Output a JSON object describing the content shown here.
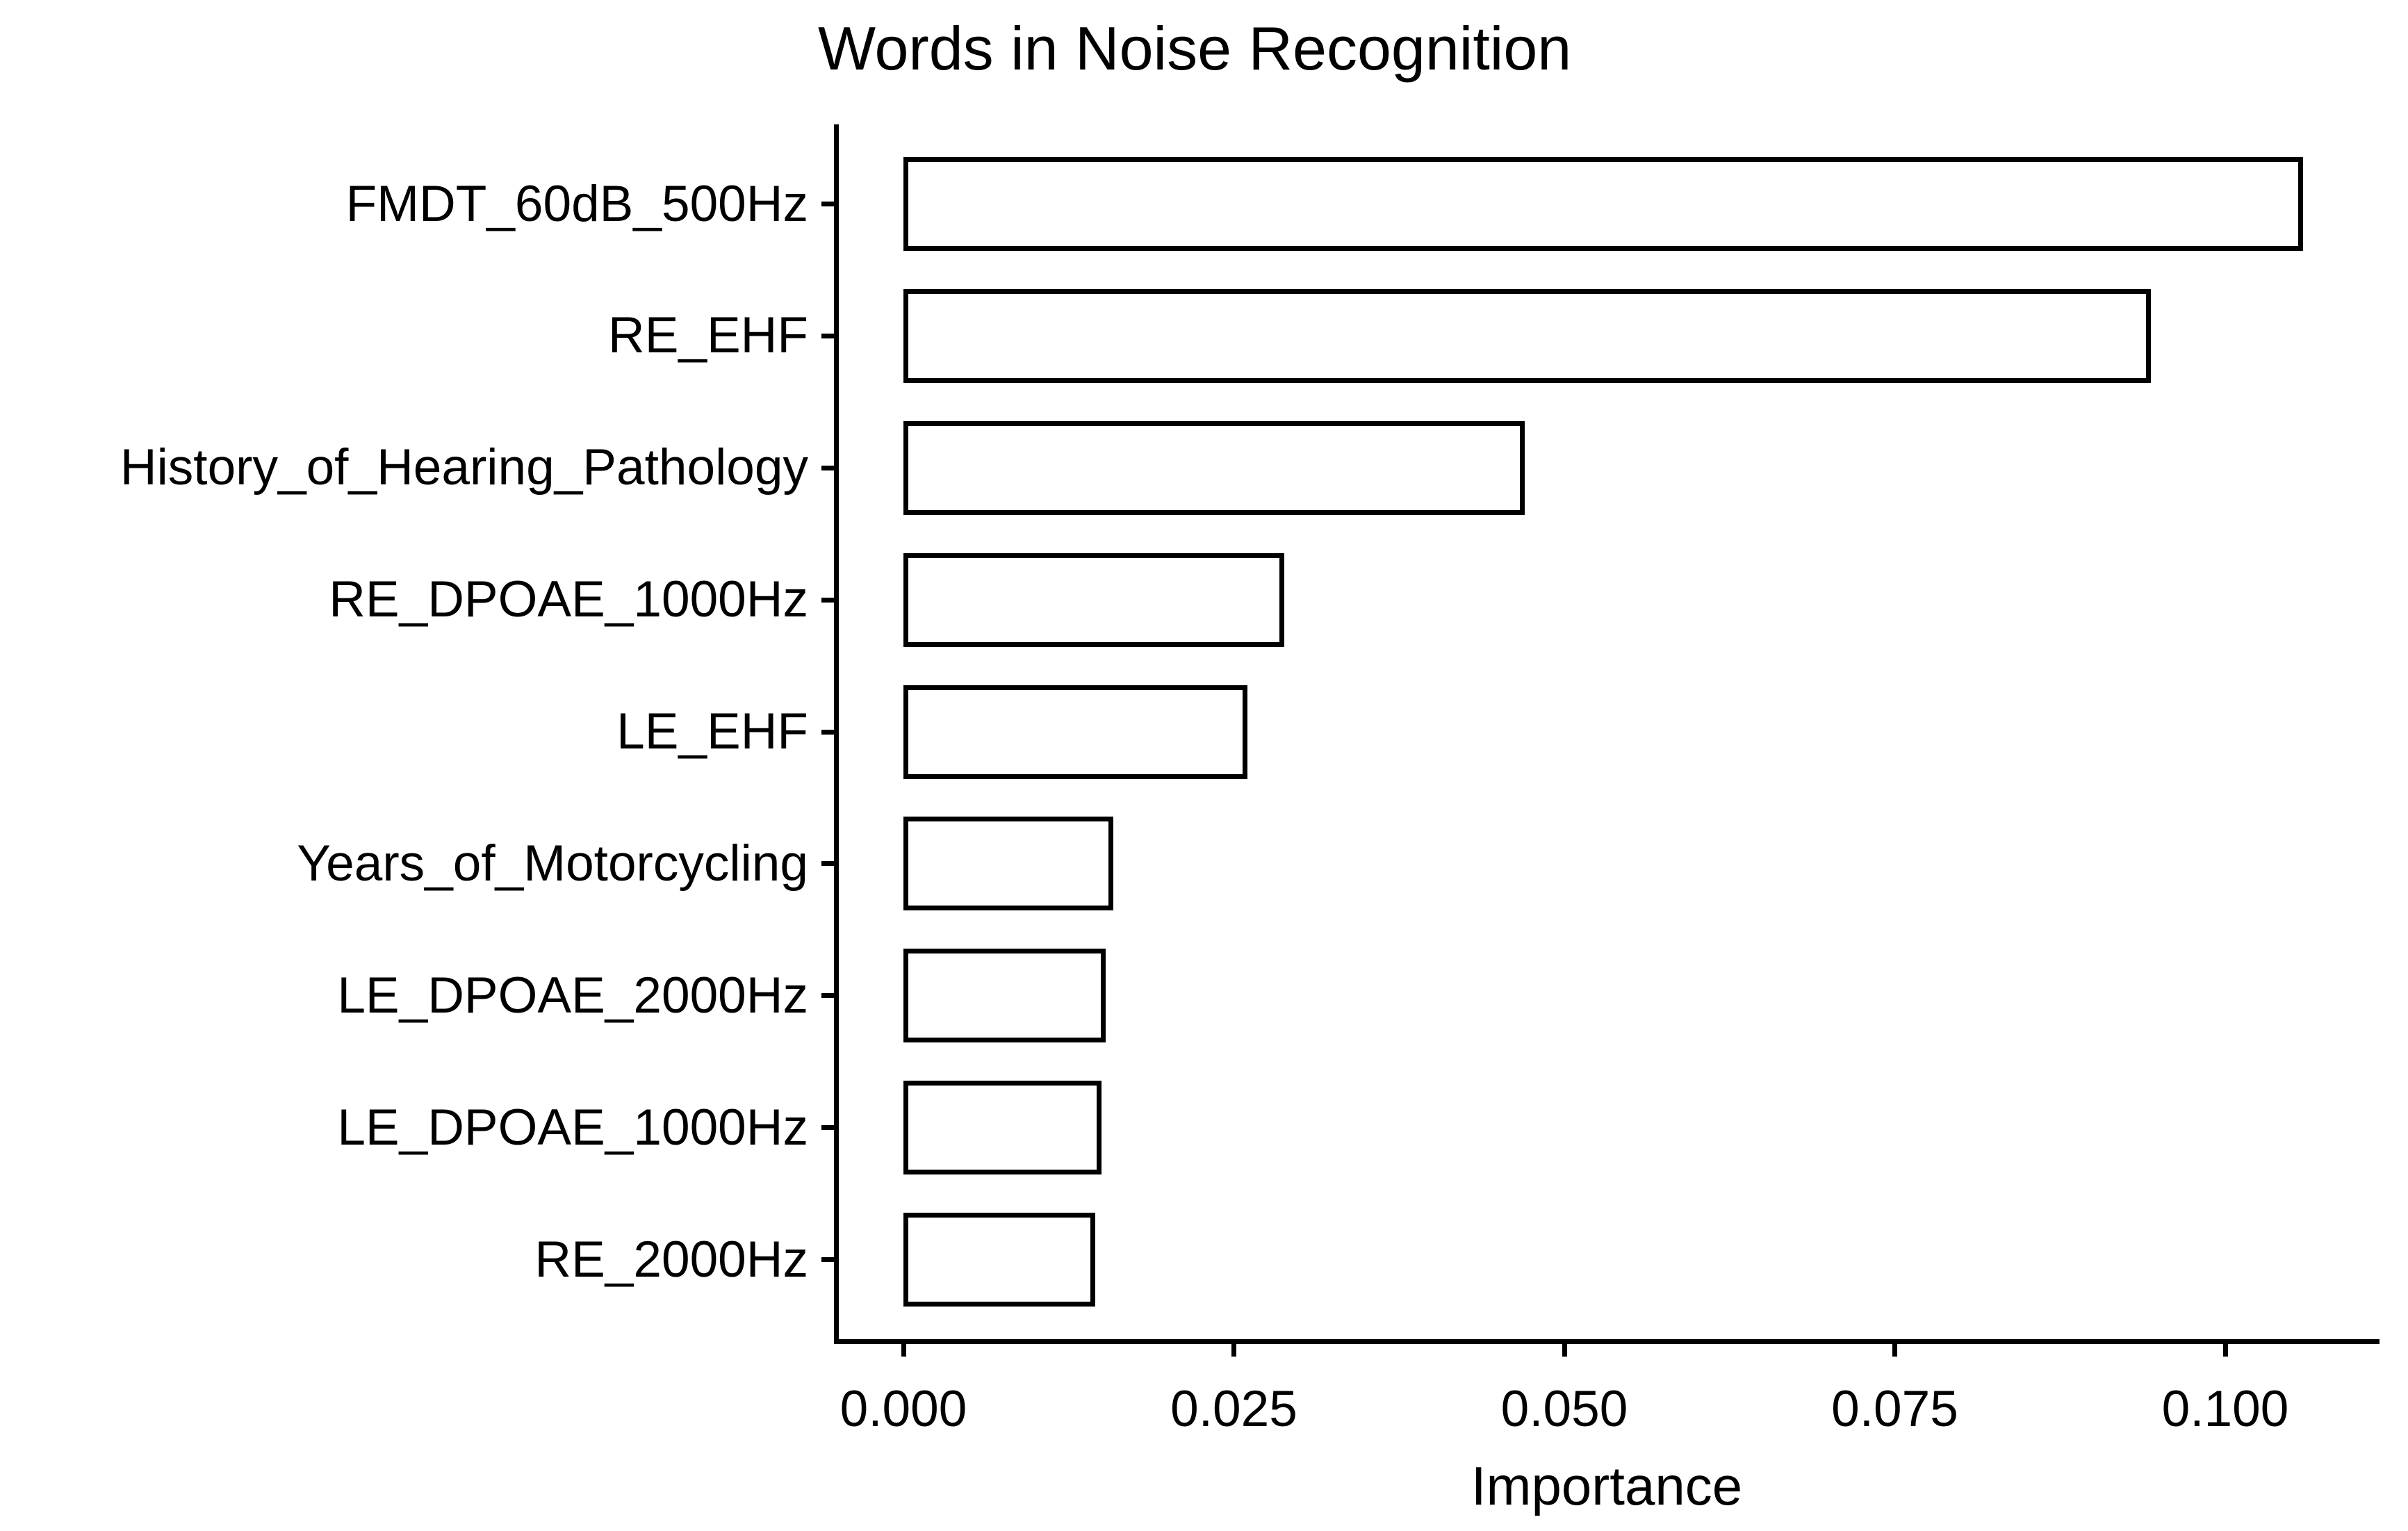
{
  "figure": {
    "title": "Words in Noise Recognition"
  },
  "chart_data": {
    "type": "bar",
    "orientation": "horizontal",
    "title": "Words in Noise Recognition",
    "xlabel": "Importance",
    "ylabel": "",
    "categories": [
      "FMDT_60dB_500Hz",
      "RE_EHF",
      "History_of_Hearing_Pathology",
      "RE_DPOAE_1000Hz",
      "LE_EHF",
      "Years_of_Motorcycling",
      "LE_DPOAE_2000Hz",
      "LE_DPOAE_1000Hz",
      "RE_2000Hz"
    ],
    "values": [
      0.1059,
      0.0944,
      0.047,
      0.0288,
      0.026,
      0.0159,
      0.0153,
      0.015,
      0.0145
    ],
    "x_ticks": [
      0,
      0.025,
      0.05,
      0.075,
      0.1
    ],
    "x_tick_labels": [
      "0.000",
      "0.025",
      "0.050",
      "0.075",
      "0.100"
    ],
    "xlim": [
      -0.0055,
      0.1115
    ],
    "grid": false,
    "legend": false,
    "bar_fill": "#ffffff",
    "bar_stroke": "#000000",
    "axis_color": "#000000",
    "text_color": "#000000",
    "background": "#ffffff"
  }
}
